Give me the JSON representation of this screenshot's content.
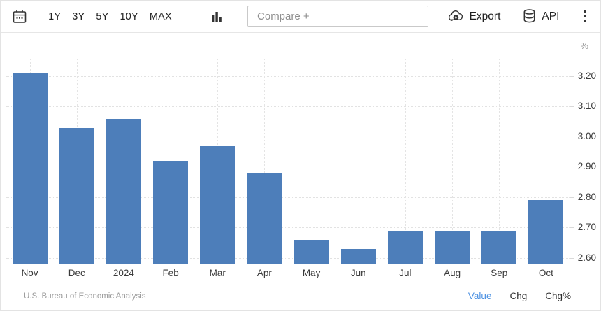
{
  "toolbar": {
    "calendar_icon": "calendar",
    "ranges": [
      "1Y",
      "3Y",
      "5Y",
      "10Y",
      "MAX"
    ],
    "chart_type_icon": "column-chart",
    "compare_placeholder": "Compare +",
    "export_label": "Export",
    "export_icon": "cloud-download",
    "api_label": "API",
    "api_icon": "database",
    "menu_icon": "kebab-menu"
  },
  "chart_data": {
    "type": "bar",
    "title": "",
    "unit_label": "%",
    "categories": [
      "Nov",
      "Dec",
      "2024",
      "Feb",
      "Mar",
      "Apr",
      "May",
      "Jun",
      "Jul",
      "Aug",
      "Sep",
      "Oct"
    ],
    "values": [
      3.21,
      3.03,
      3.06,
      2.92,
      2.97,
      2.88,
      2.66,
      2.63,
      2.69,
      2.69,
      2.69,
      2.79
    ],
    "series_name": "Value",
    "yticks": [
      2.6,
      2.7,
      2.8,
      2.9,
      3.0,
      3.1,
      3.2
    ],
    "ylim": [
      2.581,
      3.255
    ],
    "y_axis_side": "right",
    "grid": "dotted",
    "legend_position": "none",
    "bar_color": "#4d7eba"
  },
  "footer": {
    "source": "U.S. Bureau of Economic Analysis",
    "modes": [
      {
        "label": "Value",
        "active": true
      },
      {
        "label": "Chg",
        "active": false
      },
      {
        "label": "Chg%",
        "active": false
      }
    ]
  },
  "colors": {
    "bar": "#4d7eba",
    "active_link": "#4a90e2",
    "grid": "#e2e2e2",
    "plot_border": "#d9d9d9",
    "toolbar_border": "#e6e6e6",
    "source_text": "#9c9c9c"
  }
}
